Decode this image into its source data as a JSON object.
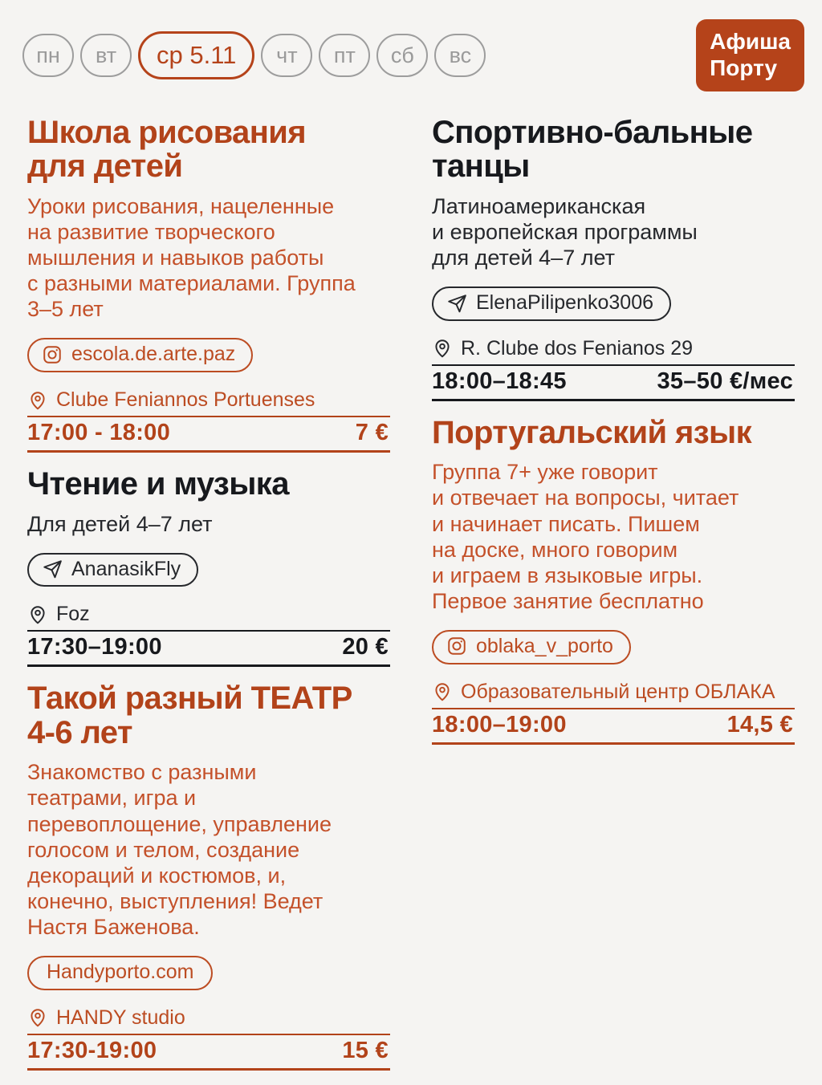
{
  "colors": {
    "background": "#f5f4f2",
    "accent_orange": "#b5431a",
    "orange_text": "#c4512a",
    "dark_text": "#17191d",
    "inactive_gray": "#9a9a9a",
    "logo_bg": "#b5431a",
    "logo_text": "#ffffff"
  },
  "header": {
    "days": [
      {
        "label": "пн",
        "selected": false
      },
      {
        "label": "вт",
        "selected": false
      },
      {
        "label": "ср 5.11",
        "selected": true
      },
      {
        "label": "чт",
        "selected": false
      },
      {
        "label": "пт",
        "selected": false
      },
      {
        "label": "сб",
        "selected": false
      },
      {
        "label": "вс",
        "selected": false
      }
    ],
    "logo": {
      "line1": "Афиша",
      "line2": "Порту"
    }
  },
  "columns": {
    "left": [
      {
        "theme": "orange",
        "title": "Школа рисования\nдля детей",
        "description": "Уроки рисования, нацеленные\nна развитие творческого\nмышления и навыков работы\nс разными материалами. Группа\n3–5 лет",
        "badge": {
          "icon": "instagram",
          "label": "escola.de.arte.paz"
        },
        "location": "Clube Feniannos Portuenses",
        "time": "17:00 - 18:00",
        "price": "7 €"
      },
      {
        "theme": "dark",
        "title": "Чтение и музыка",
        "description": "Для детей 4–7 лет",
        "badge": {
          "icon": "telegram",
          "label": "AnanasikFly"
        },
        "location": "Foz",
        "time": "17:30–19:00",
        "price": "20 €"
      },
      {
        "theme": "orange",
        "title": "Такой разный ТЕАТР\n4-6 лет",
        "description": "Знакомство с разными\nтеатрами, игра и\nперевоплощение, управление\nголосом и телом, создание\nдекораций и костюмов, и,\nконечно, выступления! Ведет\nНастя Баженова.",
        "badge": {
          "icon": null,
          "label": "Handyporto.com"
        },
        "location": "HANDY studio",
        "time": "17:30-19:00",
        "price": "15 €"
      }
    ],
    "right": [
      {
        "theme": "dark",
        "title": "Спортивно-бальные\nтанцы",
        "description": "Латиноамериканская\nи европейская программы\nдля детей 4–7 лет",
        "badge": {
          "icon": "telegram",
          "label": "ElenaPilipenko3006"
        },
        "location": "R. Clube dos Fenianos 29",
        "time": "18:00–18:45",
        "price": "35–50 €/мес"
      },
      {
        "theme": "orange",
        "title": "Португальский язык",
        "description": "Группа 7+ уже говорит\nи отвечает на вопросы, читает\nи начинает писать. Пишем\nна доске, много говорим\nи играем в языковые игры.\nПервое занятие бесплатно",
        "badge": {
          "icon": "instagram",
          "label": "oblaka_v_porto"
        },
        "location": "Образовательный центр ОБЛАКА",
        "time": "18:00–19:00",
        "price": "14,5 €"
      }
    ]
  }
}
